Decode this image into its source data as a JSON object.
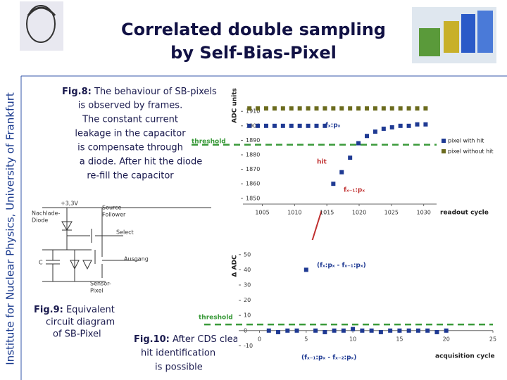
{
  "slide": {
    "title_lines": [
      "Correlated double sampling",
      "by Self-Bias-Pixel"
    ],
    "side_label": "Institute for Nuclear Physics, University of Frankfurt",
    "fig8": {
      "label": "Fig.8:",
      "lines": [
        "The behaviour of SB-pixels",
        "is observed by frames.",
        "The constant current",
        "leakage in the capacitor",
        "is compensate through",
        "a diode. After hit the diode",
        "re-fill the capacitor"
      ]
    },
    "fig9": {
      "label": "Fig.9:",
      "lines": [
        "Equivalent",
        "circuit diagram",
        "of SB-Pixel"
      ]
    },
    "fig10": {
      "label": "Fig.10:",
      "lines": [
        "After CDS clear",
        "hit identification",
        "is possible"
      ]
    },
    "circuit": {
      "labels": [
        "+3,3V",
        "Nachlade-",
        "Diode",
        "Source",
        "Follower",
        "Select",
        "C",
        "Ausgang",
        "Sensor-",
        "Pixel"
      ]
    }
  },
  "chart_data": [
    {
      "type": "scatter",
      "y_label": "ADC units",
      "x_label": "readout cycle",
      "xlim": [
        1002,
        1032
      ],
      "xticks": [
        1005,
        1010,
        1015,
        1020,
        1025,
        1030
      ],
      "ylim": [
        1846,
        1914
      ],
      "yticks": [
        1850,
        1860,
        1870,
        1880,
        1890,
        1900,
        1910
      ],
      "legend": "right",
      "series": [
        {
          "name": "pixel with hit",
          "color": "#1f3a93",
          "x": [
            1003,
            1004.3,
            1005.6,
            1006.9,
            1008.2,
            1009.5,
            1010.8,
            1012.1,
            1013.4,
            1014.7,
            1016,
            1017.3,
            1018.6,
            1019.9,
            1021.2,
            1022.5,
            1023.8,
            1025.1,
            1026.4,
            1027.7,
            1029,
            1030.3
          ],
          "values": [
            1900,
            1900,
            1900,
            1900,
            1900,
            1900,
            1900,
            1900,
            1900,
            1900,
            1860,
            1868,
            1878,
            1888,
            1893,
            1896,
            1898,
            1899,
            1900,
            1900,
            1901,
            1901
          ]
        },
        {
          "name": "pixel without hit",
          "color": "#6b6b1e",
          "x": [
            1003,
            1004.3,
            1005.6,
            1006.9,
            1008.2,
            1009.5,
            1010.8,
            1012.1,
            1013.4,
            1014.7,
            1016,
            1017.3,
            1018.6,
            1019.9,
            1021.2,
            1022.5,
            1023.8,
            1025.1,
            1026.4,
            1027.7,
            1029,
            1030.3
          ],
          "values": [
            1912,
            1912,
            1912,
            1912,
            1912,
            1912,
            1912,
            1912,
            1912,
            1912,
            1912,
            1912,
            1912,
            1912,
            1912,
            1912,
            1912,
            1912,
            1912,
            1912,
            1912,
            1912
          ]
        }
      ],
      "threshold": {
        "label": "threshold",
        "value": 1887,
        "color": "#3a9a3a"
      },
      "annotations": [
        "fₓ:pₓ",
        "hit",
        "fₓ₋₁:pₓ"
      ]
    },
    {
      "type": "scatter",
      "y_label": "Δ ADC",
      "x_label": "acquisition cycle",
      "xlim": [
        -2,
        25
      ],
      "xticks": [
        0,
        5,
        10,
        15,
        20,
        25
      ],
      "ylim": [
        -20,
        55
      ],
      "yticks": [
        -10,
        0,
        10,
        20,
        30,
        40,
        50
      ],
      "color": "#1f3a93",
      "x": [
        1,
        2,
        3,
        4,
        5,
        6,
        7,
        8,
        9,
        10,
        11,
        12,
        13,
        14,
        15,
        16,
        17,
        18,
        19,
        20
      ],
      "values": [
        0,
        -1,
        0,
        0,
        40,
        0,
        -1,
        0,
        0,
        1,
        0,
        0,
        -1,
        0,
        0,
        0,
        0,
        0,
        -1,
        0
      ],
      "threshold": {
        "label": "threshold",
        "value": 4,
        "color": "#3a9a3a"
      },
      "annotations": [
        "(fₓ:pₓ - fₓ₋₁:pₓ)",
        "(fₓ₋₁:pₓ - fₓ₋₂:pₓ)"
      ]
    }
  ]
}
